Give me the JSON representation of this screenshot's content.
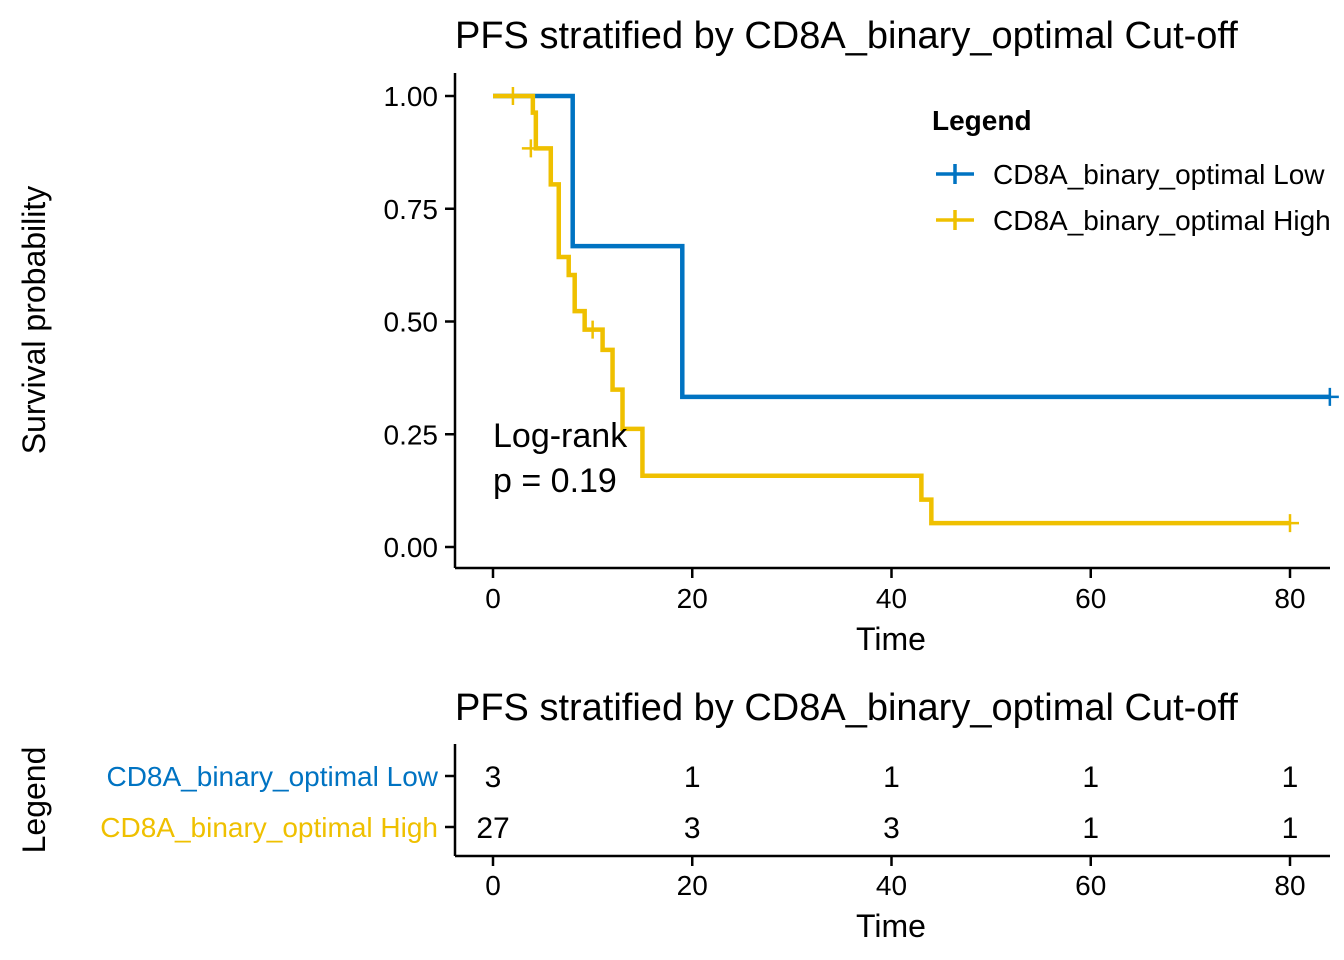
{
  "chart_data": [
    {
      "type": "line",
      "subtype": "kaplan-meier-step",
      "title": "PFS stratified by CD8A_binary_optimal Cut-off",
      "xlabel": "Time",
      "ylabel": "Survival probability",
      "xlim": [
        -4,
        84
      ],
      "ylim": [
        -0.05,
        1.05
      ],
      "x_ticks": [
        0,
        20,
        40,
        60,
        80
      ],
      "y_ticks": [
        0.0,
        0.25,
        0.5,
        0.75,
        1.0
      ],
      "y_tick_labels": [
        "0.00",
        "0.25",
        "0.50",
        "0.75",
        "1.00"
      ],
      "legend_title": "Legend",
      "legend_position": "top-right",
      "grid": false,
      "series": [
        {
          "name": "CD8A_binary_optimal Low",
          "color": "#0073C2",
          "steps": [
            [
              0,
              1.0
            ],
            [
              8,
              0.667
            ],
            [
              19,
              0.333
            ],
            [
              84,
              0.333
            ]
          ],
          "censored": [
            [
              84,
              0.333
            ]
          ]
        },
        {
          "name": "CD8A_binary_optimal High",
          "color": "#EFC000",
          "steps": [
            [
              0,
              1.0
            ],
            [
              4,
              0.963
            ],
            [
              4.3,
              0.884
            ],
            [
              5,
              0.884
            ],
            [
              5.8,
              0.804
            ],
            [
              6.6,
              0.804
            ],
            [
              6.6,
              0.643
            ],
            [
              7.6,
              0.643
            ],
            [
              7.6,
              0.603
            ],
            [
              8,
              0.603
            ],
            [
              8.2,
              0.523
            ],
            [
              9.2,
              0.523
            ],
            [
              9.2,
              0.482
            ],
            [
              10.8,
              0.482
            ],
            [
              11,
              0.437
            ],
            [
              12,
              0.437
            ],
            [
              12,
              0.349
            ],
            [
              13,
              0.349
            ],
            [
              13,
              0.262
            ],
            [
              15,
              0.262
            ],
            [
              15,
              0.158
            ],
            [
              43,
              0.158
            ],
            [
              43,
              0.105
            ],
            [
              44,
              0.105
            ],
            [
              44,
              0.053
            ],
            [
              80,
              0.053
            ]
          ],
          "censored": [
            [
              2,
              1.0
            ],
            [
              3.8,
              0.884
            ],
            [
              10,
              0.482
            ],
            [
              80,
              0.053
            ]
          ]
        }
      ],
      "annotations": [
        "Log-rank",
        "p = 0.19"
      ]
    },
    {
      "type": "table",
      "title": "PFS stratified by CD8A_binary_optimal Cut-off",
      "xlabel": "Time",
      "ylabel": "Legend",
      "x_ticks": [
        0,
        20,
        40,
        60,
        80
      ],
      "rows": [
        {
          "name": "CD8A_binary_optimal Low",
          "color": "#0073C2",
          "values": [
            3,
            1,
            1,
            1,
            1
          ]
        },
        {
          "name": "CD8A_binary_optimal High",
          "color": "#EFC000",
          "values": [
            27,
            3,
            3,
            1,
            1
          ]
        }
      ]
    }
  ]
}
